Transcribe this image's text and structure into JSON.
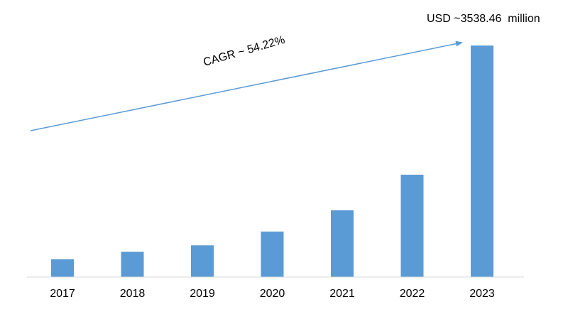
{
  "chart_data": {
    "type": "bar",
    "categories": [
      "2017",
      "2018",
      "2019",
      "2020",
      "2021",
      "2022",
      "2023"
    ],
    "values": [
      270,
      385,
      485,
      695,
      1020,
      1565,
      3538.46
    ],
    "ylim": [
      0,
      3800
    ],
    "grid": false,
    "legend": "none",
    "annotations": {
      "cagr": "CAGR ~ 54.22%",
      "final_value": "USD ~3538.46  million"
    },
    "colors": {
      "bar": "#5b9bd5",
      "arrow": "#5b9bd5",
      "axis": "#d9d9d9",
      "text": "#000000"
    }
  }
}
